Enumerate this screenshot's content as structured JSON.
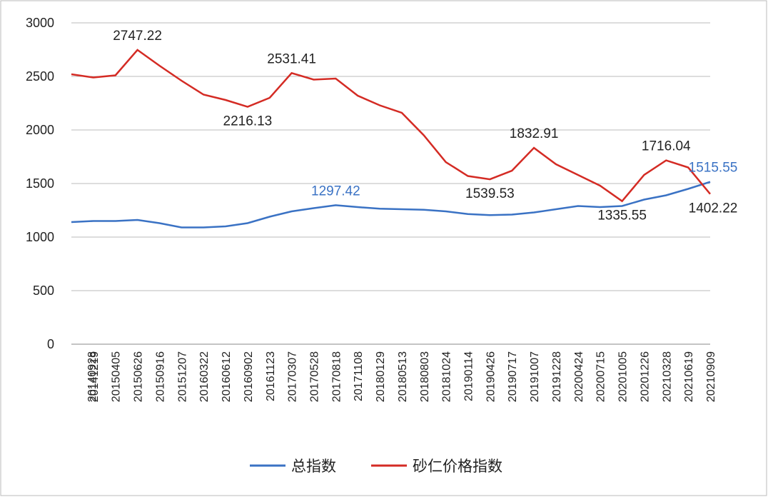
{
  "chart_data": {
    "type": "line",
    "categories": [
      "20140928",
      "20141219",
      "20150405",
      "20150626",
      "20150916",
      "20151207",
      "20160322",
      "20160612",
      "20160902",
      "20161123",
      "20170307",
      "20170528",
      "20170818",
      "20171108",
      "20180129",
      "20180513",
      "20180803",
      "20181024",
      "20190114",
      "20190426",
      "20190717",
      "20191007",
      "20191228",
      "20200424",
      "20200715",
      "20201005",
      "20201226",
      "20210328",
      "20210619",
      "20210909"
    ],
    "series": [
      {
        "name": "总指数",
        "color": "#3a72c4",
        "values": [
          1140,
          1150,
          1150,
          1160,
          1130,
          1090,
          1090,
          1100,
          1130,
          1190,
          1240,
          1270,
          1297.42,
          1280,
          1265,
          1260,
          1255,
          1240,
          1215,
          1205,
          1210,
          1230,
          1260,
          1290,
          1280,
          1290,
          1350,
          1390,
          1450,
          1515.55
        ]
      },
      {
        "name": "砂仁价格指数",
        "color": "#d42b24",
        "values": [
          2520,
          2490,
          2510,
          2747.22,
          2600,
          2460,
          2330,
          2280,
          2216.13,
          2300,
          2531.41,
          2470,
          2480,
          2320,
          2230,
          2160,
          1950,
          1700,
          1570,
          1539.53,
          1620,
          1832.91,
          1680,
          1580,
          1480,
          1335.55,
          1580,
          1716.04,
          1650,
          1402.22
        ]
      }
    ],
    "annotations": [
      {
        "x": "20150626",
        "value": 2747.22,
        "color": "#222222"
      },
      {
        "x": "20160902",
        "value": 2216.13,
        "color": "#222222"
      },
      {
        "x": "20170307",
        "value": 2531.41,
        "color": "#222222"
      },
      {
        "x": "20170818",
        "value": 1297.42,
        "color": "#3a72c4"
      },
      {
        "x": "20190426",
        "value": 1539.53,
        "color": "#222222"
      },
      {
        "x": "20191007",
        "value": 1832.91,
        "color": "#222222"
      },
      {
        "x": "20201005",
        "value": 1335.55,
        "color": "#222222"
      },
      {
        "x": "20210328",
        "value": 1716.04,
        "color": "#222222"
      },
      {
        "x": "20210909",
        "value": 1515.55,
        "color": "#3a72c4"
      },
      {
        "x": "20210909",
        "value": 1402.22,
        "color": "#222222"
      }
    ],
    "ylim": [
      0,
      3000
    ],
    "yticks": [
      0,
      500,
      1000,
      1500,
      2000,
      2500,
      3000
    ],
    "grid": true,
    "legend": "bottom"
  }
}
